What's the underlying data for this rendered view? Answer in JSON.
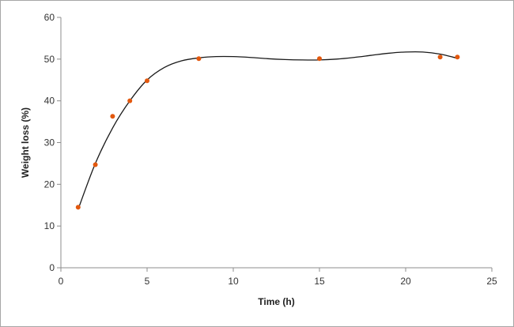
{
  "chart_data": {
    "type": "scatter",
    "title": "",
    "xlabel": "Time (h)",
    "ylabel": "Weight loss (%)",
    "xlim": [
      0,
      25
    ],
    "ylim": [
      0,
      60
    ],
    "xticks": [
      0,
      5,
      10,
      15,
      20,
      25
    ],
    "yticks": [
      0,
      10,
      20,
      30,
      40,
      50,
      60
    ],
    "grid": false,
    "legend": "none",
    "series": [
      {
        "points": [
          {
            "x": 1,
            "y": 14.5
          },
          {
            "x": 2,
            "y": 24.7
          },
          {
            "x": 3,
            "y": 36.3
          },
          {
            "x": 4,
            "y": 40.0
          },
          {
            "x": 5,
            "y": 44.8
          },
          {
            "x": 8,
            "y": 50.1
          },
          {
            "x": 15,
            "y": 50.1
          },
          {
            "x": 22,
            "y": 50.5
          },
          {
            "x": 23,
            "y": 50.5
          }
        ],
        "color": "#e3580e"
      }
    ],
    "trendline": {
      "points": [
        {
          "x": 1,
          "y": 14.0
        },
        {
          "x": 2,
          "y": 25.0
        },
        {
          "x": 3,
          "y": 33.5
        },
        {
          "x": 4,
          "y": 40.0
        },
        {
          "x": 5,
          "y": 45.0
        },
        {
          "x": 6,
          "y": 48.0
        },
        {
          "x": 7,
          "y": 49.6
        },
        {
          "x": 8,
          "y": 50.3
        },
        {
          "x": 9,
          "y": 50.6
        },
        {
          "x": 10,
          "y": 50.6
        },
        {
          "x": 11,
          "y": 50.4
        },
        {
          "x": 12,
          "y": 50.1
        },
        {
          "x": 13,
          "y": 49.9
        },
        {
          "x": 14,
          "y": 49.8
        },
        {
          "x": 15,
          "y": 49.8
        },
        {
          "x": 16,
          "y": 50.0
        },
        {
          "x": 17,
          "y": 50.4
        },
        {
          "x": 18,
          "y": 50.9
        },
        {
          "x": 19,
          "y": 51.4
        },
        {
          "x": 20,
          "y": 51.7
        },
        {
          "x": 21,
          "y": 51.7
        },
        {
          "x": 22,
          "y": 51.2
        },
        {
          "x": 23,
          "y": 50.2
        }
      ],
      "color": "#1a1a1a"
    },
    "axis_color": "#8c8c8c"
  }
}
